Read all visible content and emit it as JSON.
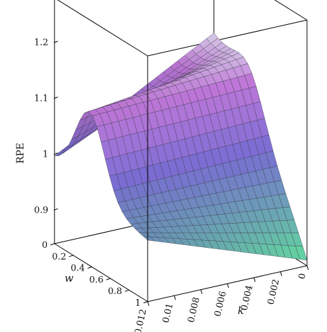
{
  "chart_data": {
    "type": "surface",
    "title": "",
    "zlabel": "RPE",
    "xlabel": "k",
    "ylabel": "w",
    "x_ticks": [
      "0.012",
      "0.01",
      "0.008",
      "0.006",
      "0.004",
      "0.002",
      "0"
    ],
    "y_ticks": [
      "0",
      "0.2",
      "0.4",
      "0.6",
      "0.8",
      "1"
    ],
    "z_ticks": [
      "0.9",
      "1",
      "1.1",
      "1.2"
    ],
    "xlim": [
      0,
      0.012
    ],
    "ylim": [
      0,
      1
    ],
    "zlim": [
      0.84,
      1.28
    ],
    "surface_samples": [
      {
        "k": 0.012,
        "w": 0,
        "rpe": 0.99
      },
      {
        "k": 0.012,
        "w": 0.4,
        "rpe": 1.13
      },
      {
        "k": 0.012,
        "w": 1,
        "rpe": 0.95
      },
      {
        "k": 0.006,
        "w": 0.5,
        "rpe": 1.03
      },
      {
        "k": 0,
        "w": 0,
        "rpe": 1.15
      },
      {
        "k": 0,
        "w": 0.5,
        "rpe": 1.0
      },
      {
        "k": 0,
        "w": 1,
        "rpe": 0.86
      }
    ],
    "grid": true,
    "colors": {
      "low": "#66d9a6",
      "mid": "#7b6fd8",
      "high": "#c77be0",
      "peak": "#eef2ff",
      "mesh": "#3a3a4a",
      "box": "#000000"
    }
  }
}
